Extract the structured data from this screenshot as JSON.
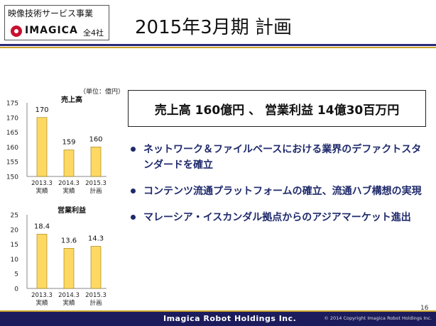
{
  "header": {
    "segment": "映像技術サービス事業",
    "logo_text": "IMAGICA",
    "scope": "全4社",
    "title": "2015年3月期 計画"
  },
  "unit_note": "（単位：億円）",
  "colors": {
    "bar_fill": "#FDD863",
    "bar_stroke": "#9A7A00",
    "bullet_text": "#1F2A6B",
    "footer_bg": "#1C1C5C",
    "accent_gold": "#C8A22A"
  },
  "chart_data": [
    {
      "type": "bar",
      "title": "売上高",
      "categories": [
        [
          "2013.3",
          "実績"
        ],
        [
          "2014.3",
          "実績"
        ],
        [
          "2015.3",
          "計画"
        ]
      ],
      "values": [
        170,
        159,
        160
      ],
      "value_labels": [
        "170",
        "159",
        "160"
      ],
      "yticks": [
        "175",
        "170",
        "165",
        "160",
        "155",
        "150"
      ],
      "ylim": [
        150,
        175
      ]
    },
    {
      "type": "bar",
      "title": "営業利益",
      "categories": [
        [
          "2013.3",
          "実績"
        ],
        [
          "2014.3",
          "実績"
        ],
        [
          "2015.3",
          "計画"
        ]
      ],
      "values": [
        18.4,
        13.6,
        14.3
      ],
      "value_labels": [
        "18.4",
        "13.6",
        "14.3"
      ],
      "yticks": [
        "25",
        "20",
        "15",
        "10",
        "5",
        "0"
      ],
      "ylim": [
        0,
        25
      ]
    }
  ],
  "summary": "売上高 160億円 、 営業利益 14億30百万円",
  "bullets": [
    "ネットワーク＆ファイルベースにおける業界のデファクトスタンダードを確立",
    "コンテンツ流通プラットフォームの確立、流通ハブ構想の実現",
    "マレーシア・イスカンダル拠点からのアジアマーケット進出"
  ],
  "page_number": "16",
  "footer": {
    "company": "Imagica Robot Holdings Inc.",
    "copyright": "© 2014 Copyright Imagica Robot Holdings Inc."
  }
}
